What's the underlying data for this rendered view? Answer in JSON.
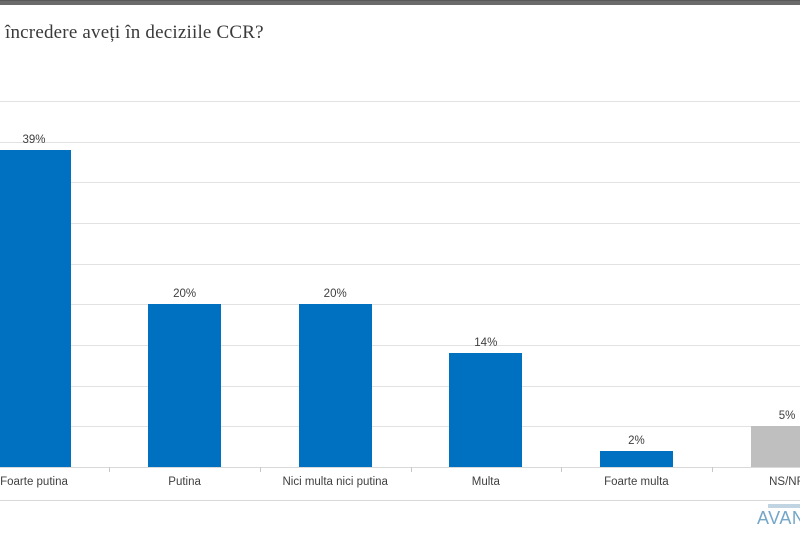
{
  "title": "încredere aveți în deciziile CCR?",
  "chart_data": {
    "type": "bar",
    "title": "încredere aveți în deciziile CCR?",
    "categories": [
      "Foarte putina",
      "Putina",
      "Nici multa nici putina",
      "Multa",
      "Foarte multa",
      "NS/NR"
    ],
    "values": [
      39,
      20,
      20,
      14,
      2,
      5
    ],
    "value_labels": [
      "39%",
      "20%",
      "20%",
      "14%",
      "2%",
      "5%"
    ],
    "bar_colors": [
      "#0070C0",
      "#0070C0",
      "#0070C0",
      "#0070C0",
      "#0070C0",
      "#BFBFBF"
    ],
    "xlabel": "",
    "ylabel": "",
    "ylim": [
      0,
      45
    ],
    "gridline_step": 5,
    "grid": true,
    "legend": "none",
    "layout_hints": "horizontal gridlines only, no visible y-axis tick labels, chart cropped at left and right edges"
  },
  "colors": {
    "accent_blue": "#0070C0",
    "neutral_gray": "#BFBFBF",
    "gridline": "#e2e2e2",
    "axis_line": "#d9d9d9",
    "label_text": "#404040",
    "logo_blue": "#74a7c9",
    "top_strip": "#6b6b6b"
  },
  "logo": {
    "text": "AVAN"
  }
}
